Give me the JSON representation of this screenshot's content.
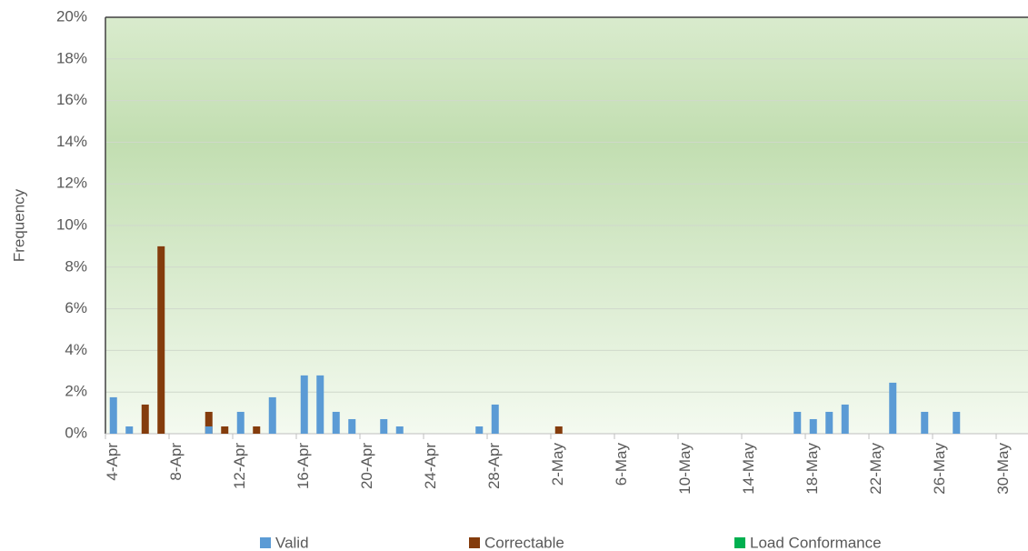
{
  "chart_data": {
    "type": "bar",
    "y_label": "Frequency",
    "categories": [
      "4-Apr",
      null,
      null,
      null,
      "8-Apr",
      null,
      null,
      null,
      "12-Apr",
      null,
      null,
      null,
      "16-Apr",
      null,
      null,
      null,
      "20-Apr",
      null,
      null,
      null,
      "24-Apr",
      null,
      null,
      null,
      "28-Apr",
      null,
      null,
      null,
      "2-May",
      null,
      null,
      null,
      "6-May",
      null,
      null,
      null,
      "10-May",
      null,
      null,
      null,
      "14-May",
      null,
      null,
      null,
      "18-May",
      null,
      null,
      null,
      "22-May",
      null,
      null,
      null,
      "26-May",
      null,
      null,
      null,
      "30-May",
      null
    ],
    "series": [
      {
        "name": "Valid",
        "color": "#5b9bd5",
        "values": [
          1.75,
          0.35,
          0,
          0,
          0,
          0,
          0.35,
          0,
          1.05,
          0,
          1.75,
          0,
          2.8,
          2.8,
          1.05,
          0.7,
          0,
          0.7,
          0.35,
          0,
          0,
          0,
          0,
          0.35,
          1.4,
          0,
          0,
          0,
          0,
          0,
          0,
          0,
          0,
          0,
          0,
          0,
          0,
          0,
          0,
          0,
          0,
          0,
          0,
          1.05,
          0.7,
          1.05,
          1.4,
          0,
          0,
          2.45,
          0,
          1.05,
          0,
          1.05,
          0,
          0,
          0,
          0
        ]
      },
      {
        "name": "Correctable",
        "color": "#843c0c",
        "values": [
          0,
          0,
          1.4,
          9.0,
          0,
          0,
          1.05,
          0.35,
          0,
          0.35,
          0,
          0,
          0,
          0,
          0,
          0,
          0,
          0,
          0,
          0,
          0,
          0,
          0,
          0,
          0,
          0,
          0,
          0,
          0.35,
          0,
          0,
          0,
          0,
          0,
          0,
          0,
          0,
          0,
          0,
          0,
          0,
          0,
          0,
          0,
          0,
          0,
          0,
          0,
          0,
          0,
          0,
          0,
          0,
          0,
          0,
          0,
          0,
          0
        ]
      },
      {
        "name": "Load Conformance",
        "color": "#00b050",
        "values": [
          0,
          0,
          0,
          0,
          0,
          0,
          0,
          0,
          0,
          0,
          0,
          0,
          0,
          0,
          0,
          0,
          0,
          0,
          0,
          0,
          0,
          0,
          0,
          0,
          0,
          0,
          0,
          0,
          0,
          0,
          0,
          0,
          0,
          0,
          0,
          0,
          0,
          0,
          0,
          0,
          0,
          0,
          0,
          0,
          0,
          0,
          0,
          0,
          0,
          0,
          0,
          0,
          0,
          0,
          0,
          0,
          0,
          0
        ]
      }
    ],
    "ylim": [
      0,
      20
    ],
    "yticks": [
      {
        "value": 0,
        "label": "0%"
      },
      {
        "value": 2,
        "label": "2%"
      },
      {
        "value": 4,
        "label": "4%"
      },
      {
        "value": 6,
        "label": "6%"
      },
      {
        "value": 8,
        "label": "8%"
      },
      {
        "value": 10,
        "label": "10%"
      },
      {
        "value": 12,
        "label": "12%"
      },
      {
        "value": 14,
        "label": "14%"
      },
      {
        "value": 16,
        "label": "16%"
      },
      {
        "value": 18,
        "label": "18%"
      },
      {
        "value": 20,
        "label": "20%"
      }
    ],
    "grid": true,
    "legend": "bottom"
  }
}
